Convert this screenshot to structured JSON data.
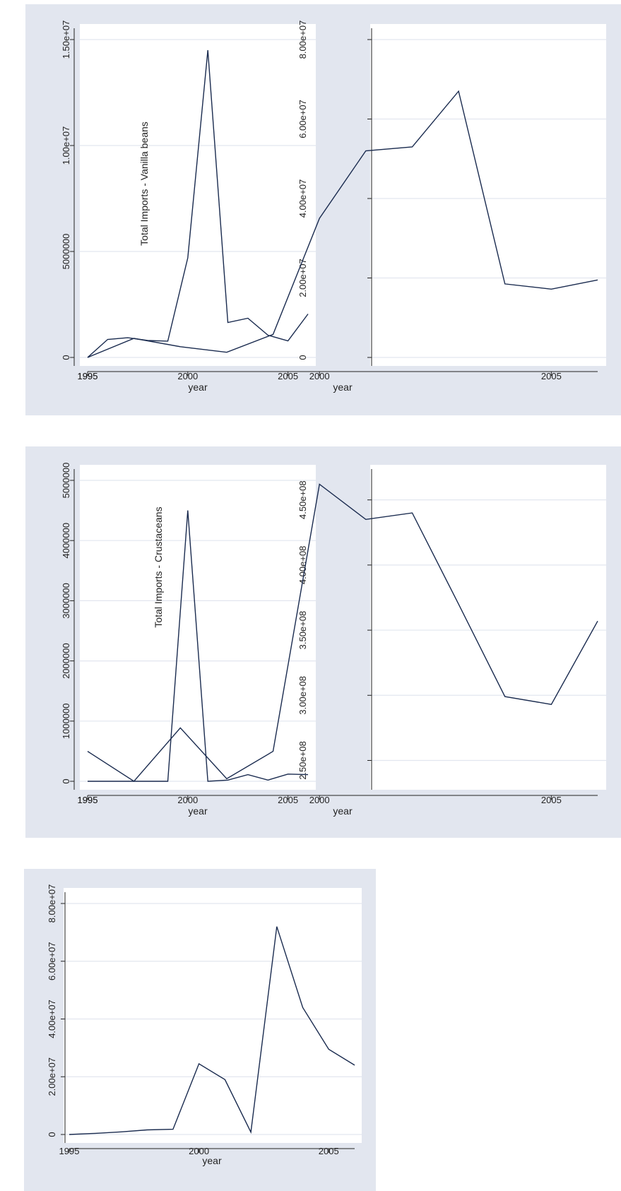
{
  "chart_data": [
    {
      "id": "vanilla-volume",
      "type": "line",
      "title": "",
      "xlabel": "year",
      "ylabel": "",
      "annotation": "Total Imports - Vanilla beans",
      "x": [
        1995,
        1996,
        1997,
        1998,
        1999,
        2000,
        2001,
        2002,
        2003,
        2004,
        2005,
        2006
      ],
      "series": [
        {
          "values": [
            0,
            850000,
            930000,
            800000,
            770000,
            4700000,
            14500000,
            1650000,
            1850000,
            1050000,
            780000,
            2050000
          ]
        }
      ],
      "xticks": [
        1995,
        2000,
        2005
      ],
      "yticks": [
        0,
        5000000,
        10000000,
        15000000
      ],
      "ytick_labels": [
        "0",
        "5000000",
        "1.00e+07",
        "1.50e+07"
      ],
      "xlim": [
        1995,
        2006
      ],
      "ylim": [
        0,
        15000000
      ],
      "grid": true,
      "line_color": "#1a2b4f"
    },
    {
      "id": "vanilla-value",
      "type": "line",
      "title": "",
      "xlabel": "year",
      "ylabel": "",
      "x": [
        1995,
        1996,
        1997,
        1998,
        1999,
        2000,
        2001,
        2002,
        2003,
        2004,
        2005,
        2006
      ],
      "series": [
        {
          "values": [
            0,
            4800000,
            2700000,
            1300000,
            5800000,
            35000000,
            52000000,
            53000000,
            67000000,
            18500000,
            17200000,
            19500000
          ]
        }
      ],
      "xticks": [
        1995,
        2000,
        2005
      ],
      "yticks": [
        0,
        20000000,
        40000000,
        60000000,
        80000000
      ],
      "ytick_labels": [
        "0",
        "2.00e+07",
        "4.00e+07",
        "6.00e+07",
        "8.00e+07"
      ],
      "xlim": [
        1995,
        2006
      ],
      "ylim": [
        0,
        80000000
      ],
      "grid": true,
      "line_color": "#1a2b4f"
    },
    {
      "id": "crustaceans-volume",
      "type": "line",
      "title": "",
      "xlabel": "year",
      "ylabel": "",
      "annotation": "Total Imports - Crustaceans",
      "x": [
        1995,
        1996,
        1997,
        1998,
        1999,
        2000,
        2001,
        2002,
        2003,
        2004,
        2005,
        2006
      ],
      "series": [
        {
          "values": [
            0,
            0,
            0,
            0,
            0,
            4500000,
            0,
            20000,
            110000,
            20000,
            120000,
            110000
          ]
        }
      ],
      "xticks": [
        1995,
        2000,
        2005
      ],
      "yticks": [
        0,
        1000000,
        2000000,
        3000000,
        4000000,
        5000000
      ],
      "ytick_labels": [
        "0",
        "1000000",
        "2000000",
        "3000000",
        "4000000",
        "5000000"
      ],
      "xlim": [
        1995,
        2006
      ],
      "ylim": [
        0,
        5000000
      ],
      "grid": true,
      "line_color": "#1a2b4f"
    },
    {
      "id": "crustaceans-value",
      "type": "line",
      "title": "",
      "xlabel": "year",
      "ylabel": "",
      "x": [
        1995,
        1996,
        1997,
        1998,
        1999,
        2000,
        2001,
        2002,
        2003,
        2004,
        2005,
        2006
      ],
      "series": [
        {
          "values": [
            257000000,
            234000000,
            275000000,
            236000000,
            257000000,
            462000000,
            435000000,
            440000000,
            370000000,
            299000000,
            293000000,
            357000000
          ]
        }
      ],
      "xticks": [
        1995,
        2000,
        2005
      ],
      "yticks": [
        250000000,
        300000000,
        350000000,
        400000000,
        450000000
      ],
      "ytick_labels": [
        "2.50e+08",
        "3.00e+08",
        "3.50e+08",
        "4.00e+08",
        "4.50e+08"
      ],
      "xlim": [
        1995,
        2006
      ],
      "ylim": [
        234000000,
        465000000
      ],
      "grid": true,
      "line_color": "#1a2b4f"
    },
    {
      "id": "fifth-series",
      "type": "line",
      "title": "",
      "xlabel": "year",
      "ylabel": "",
      "x": [
        1995,
        1996,
        1997,
        1998,
        1999,
        2000,
        2001,
        2002,
        2003,
        2004,
        2005,
        2006
      ],
      "series": [
        {
          "values": [
            0,
            400000,
            900000,
            1600000,
            1800000,
            24500000,
            19000000,
            800000,
            72000000,
            44000000,
            29500000,
            24000000
          ]
        }
      ],
      "xticks": [
        1995,
        2000,
        2005
      ],
      "yticks": [
        0,
        20000000,
        40000000,
        60000000,
        80000000
      ],
      "ytick_labels": [
        "0",
        "2.00e+07",
        "4.00e+07",
        "6.00e+07",
        "8.00e+07"
      ],
      "xlim": [
        1995,
        2006
      ],
      "ylim": [
        0,
        80000000
      ],
      "grid": true,
      "line_color": "#1a2b4f"
    }
  ]
}
